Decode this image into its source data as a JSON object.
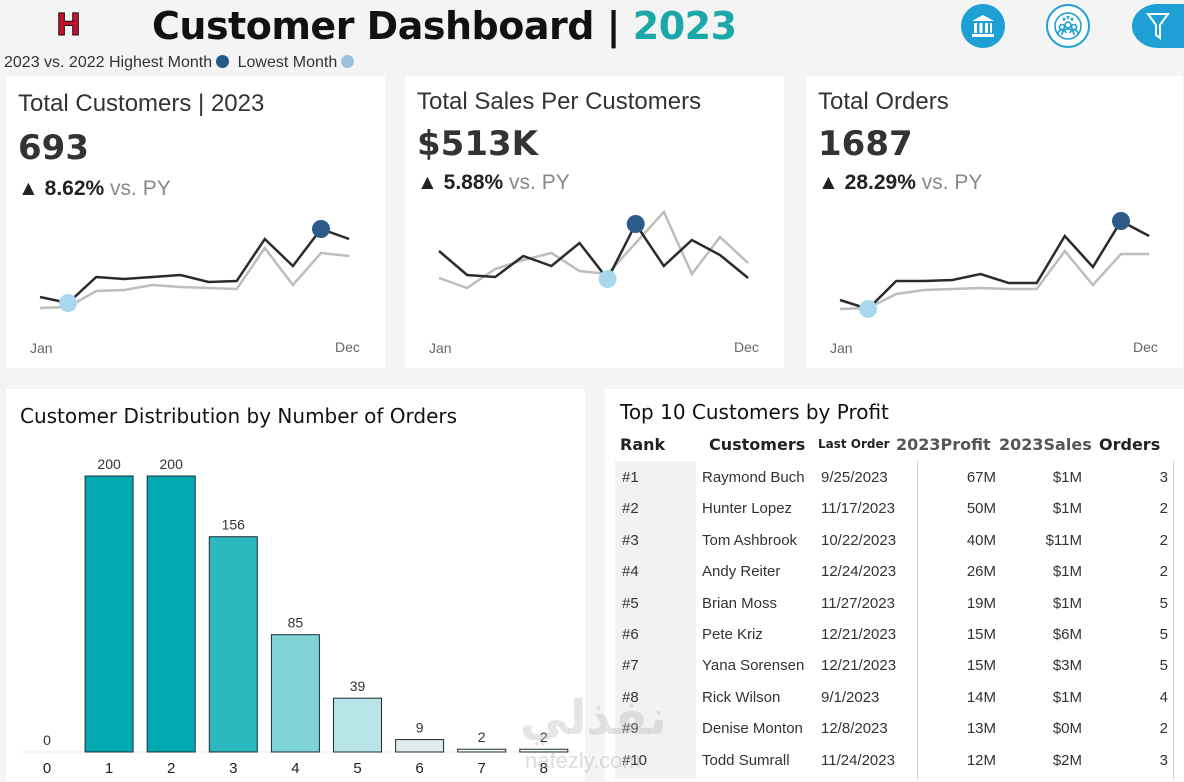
{
  "header": {
    "logo": "H",
    "title": "Customer Dashboard",
    "separator": "|",
    "year": "2023",
    "legend_prefix": "2023 vs. 2022",
    "legend_high": "Highest Month",
    "legend_low": "Lowest Month",
    "high_color": "#1f5a8a",
    "low_color": "#9dbfe0",
    "icons": [
      "bank-icon",
      "customers-icon",
      "filter-icon"
    ]
  },
  "kpis": [
    {
      "title": "Total Customers | 2023",
      "value": "693",
      "change": "8.62%",
      "vs": "vs. PY",
      "start": "Jan",
      "end": "Dec",
      "cur": [
        31,
        25,
        51,
        49,
        51,
        53,
        46,
        47,
        89,
        62,
        99,
        89
      ],
      "prev": [
        20,
        21,
        37,
        38,
        43,
        41,
        40,
        39,
        80,
        43,
        75,
        72
      ],
      "low": 1,
      "high": 10
    },
    {
      "title": "Total Sales Per Customers",
      "value": "$513K",
      "change": "5.88%",
      "vs": "vs. PY",
      "start": "Jan",
      "end": "Dec",
      "cur": [
        77,
        53,
        51,
        72,
        62,
        85,
        49,
        104,
        62,
        88,
        73,
        50
      ],
      "prev": [
        50,
        40,
        59,
        68,
        75,
        57,
        54,
        85,
        116,
        54,
        91,
        65
      ],
      "low": 6,
      "high": 7
    },
    {
      "title": "Total Orders",
      "value": "1687",
      "change": "28.29%",
      "vs": "vs. PY",
      "start": "Jan",
      "end": "Dec",
      "cur": [
        28,
        19,
        47,
        47,
        48,
        54,
        45,
        45,
        92,
        61,
        107,
        92
      ],
      "prev": [
        19,
        20,
        34,
        38,
        39,
        40,
        39,
        39,
        77,
        43,
        74,
        74
      ],
      "low": 1,
      "high": 10
    }
  ],
  "chart_data": {
    "type": "bar",
    "title": "Customer Distribution by Number of Orders",
    "categories": [
      "0",
      "1",
      "2",
      "3",
      "4",
      "5",
      "6",
      "7",
      "8"
    ],
    "values": [
      0,
      200,
      200,
      156,
      85,
      39,
      9,
      2,
      2
    ],
    "colors": [
      "#ffffff",
      "#00aab0",
      "#00aab0",
      "#2bb9bf",
      "#7ed4d9",
      "#b6e4e7",
      "#e1ebeb",
      "#f4f6f6",
      "#f4f6f6"
    ],
    "ylim": [
      0,
      200
    ]
  },
  "table": {
    "title": "Top 10 Customers by Profit",
    "headers": [
      "Rank",
      "Customers",
      "Last Order",
      "2023Profit",
      "2023Sales",
      "Orders"
    ],
    "rows": [
      [
        "#1",
        "Raymond Buch",
        "9/25/2023",
        "67M",
        "$1M",
        "3"
      ],
      [
        "#2",
        "Hunter Lopez",
        "11/17/2023",
        "50M",
        "$1M",
        "2"
      ],
      [
        "#3",
        "Tom Ashbrook",
        "10/22/2023",
        "40M",
        "$11M",
        "2"
      ],
      [
        "#4",
        "Andy Reiter",
        "12/24/2023",
        "26M",
        "$1M",
        "2"
      ],
      [
        "#5",
        "Brian Moss",
        "11/27/2023",
        "19M",
        "$1M",
        "5"
      ],
      [
        "#6",
        "Pete Kriz",
        "12/21/2023",
        "15M",
        "$6M",
        "5"
      ],
      [
        "#7",
        "Yana Sorensen",
        "12/21/2023",
        "15M",
        "$3M",
        "5"
      ],
      [
        "#8",
        "Rick Wilson",
        "9/1/2023",
        "14M",
        "$1M",
        "4"
      ],
      [
        "#9",
        "Denise Monton",
        "12/8/2023",
        "13M",
        "$0M",
        "2"
      ],
      [
        "#10",
        "Todd Sumrall",
        "11/24/2023",
        "12M",
        "$2M",
        "3"
      ]
    ]
  },
  "watermark": {
    "arabic": "نفذلي",
    "latin": "nafezly.com"
  }
}
